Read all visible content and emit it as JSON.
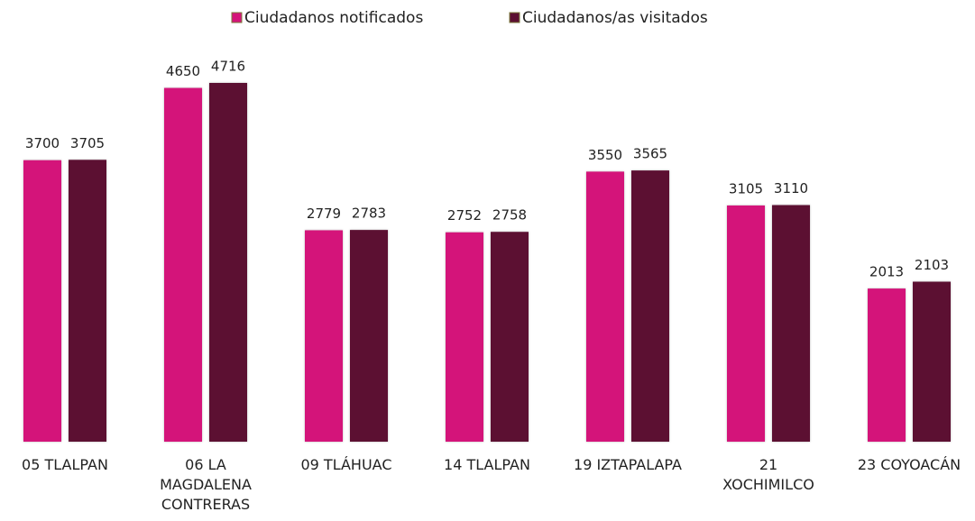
{
  "chart_data": {
    "type": "bar",
    "categories": [
      "05 TLALPAN",
      "06 LA MAGDALENA CONTRERAS",
      "09 TLÁHUAC",
      "14 TLALPAN",
      "19 IZTAPALAPA",
      "21 XOCHIMILCO",
      "23 COYOACÁN"
    ],
    "series": [
      {
        "name": "Ciudadanos notificados",
        "color": "#d4147a",
        "values": [
          3700,
          4650,
          2779,
          2752,
          3550,
          3105,
          2013
        ]
      },
      {
        "name": "Ciudadanos/as visitados",
        "color": "#5c1032",
        "values": [
          3705,
          4716,
          2783,
          2758,
          3565,
          3110,
          2103
        ]
      }
    ],
    "legend": "top"
  }
}
